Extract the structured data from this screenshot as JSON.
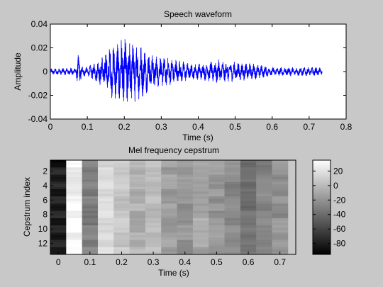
{
  "chart_data": [
    {
      "type": "line",
      "title": "Speech waveform",
      "xlabel": "Time (s)",
      "ylabel": "Amplitude",
      "xlim": [
        0,
        0.8
      ],
      "ylim": [
        -0.04,
        0.04
      ],
      "xticks": [
        0,
        0.1,
        0.2,
        0.3,
        0.4,
        0.5,
        0.6,
        0.7,
        0.8
      ],
      "xtick_labels": [
        "0",
        "0.1",
        "0.2",
        "0.3",
        "0.4",
        "0.5",
        "0.6",
        "0.7",
        "0.8"
      ],
      "yticks": [
        -0.04,
        -0.02,
        0,
        0.02,
        0.04
      ],
      "ytick_labels": [
        "-0.04",
        "-0.02",
        "0",
        "0.02",
        "0.04"
      ],
      "line_color": "#0000ff",
      "signal_duration": 0.735,
      "envelope": [
        [
          0.0,
          0.002
        ],
        [
          0.07,
          0.003
        ],
        [
          0.075,
          0.012
        ],
        [
          0.085,
          0.004
        ],
        [
          0.1,
          0.003
        ],
        [
          0.13,
          0.008
        ],
        [
          0.15,
          0.014
        ],
        [
          0.17,
          0.018
        ],
        [
          0.19,
          0.022
        ],
        [
          0.21,
          0.024
        ],
        [
          0.23,
          0.02
        ],
        [
          0.25,
          0.017
        ],
        [
          0.27,
          0.012
        ],
        [
          0.3,
          0.01
        ],
        [
          0.33,
          0.009
        ],
        [
          0.36,
          0.007
        ],
        [
          0.38,
          0.005
        ],
        [
          0.42,
          0.006
        ],
        [
          0.45,
          0.008
        ],
        [
          0.48,
          0.007
        ],
        [
          0.52,
          0.006
        ],
        [
          0.56,
          0.005
        ],
        [
          0.6,
          0.003
        ],
        [
          0.64,
          0.003
        ],
        [
          0.68,
          0.003
        ],
        [
          0.72,
          0.003
        ],
        [
          0.735,
          0.002
        ]
      ]
    },
    {
      "type": "heatmap",
      "title": "Mel frequency cepstrum",
      "xlabel": "Time (s)",
      "ylabel": "Cepstrum index",
      "xlim": [
        -0.025,
        0.75
      ],
      "ylim": [
        0.5,
        13.5
      ],
      "xticks": [
        0,
        0.1,
        0.2,
        0.3,
        0.4,
        0.5,
        0.6,
        0.7
      ],
      "xtick_labels": [
        "0",
        "0.1",
        "0.2",
        "0.3",
        "0.4",
        "0.5",
        "0.6",
        "0.7"
      ],
      "yticks": [
        2,
        4,
        6,
        8,
        10,
        12
      ],
      "ytick_labels": [
        "2",
        "4",
        "6",
        "8",
        "10",
        "12"
      ],
      "frame_times": [
        0,
        0.05,
        0.1,
        0.15,
        0.2,
        0.25,
        0.3,
        0.35,
        0.4,
        0.45,
        0.5,
        0.55,
        0.6,
        0.65,
        0.7
      ],
      "column_means": [
        -80,
        30,
        -30,
        15,
        5,
        -5,
        0,
        -15,
        -20,
        -10,
        -20,
        -25,
        -35,
        -30,
        -20
      ],
      "colorbar": {
        "range": [
          -95,
          35
        ],
        "ticks": [
          20,
          0,
          -20,
          -40,
          -60,
          -80
        ],
        "tick_labels": [
          "20",
          "0",
          "-20",
          "-40",
          "-60",
          "-80"
        ],
        "colormap": "gray"
      }
    }
  ]
}
